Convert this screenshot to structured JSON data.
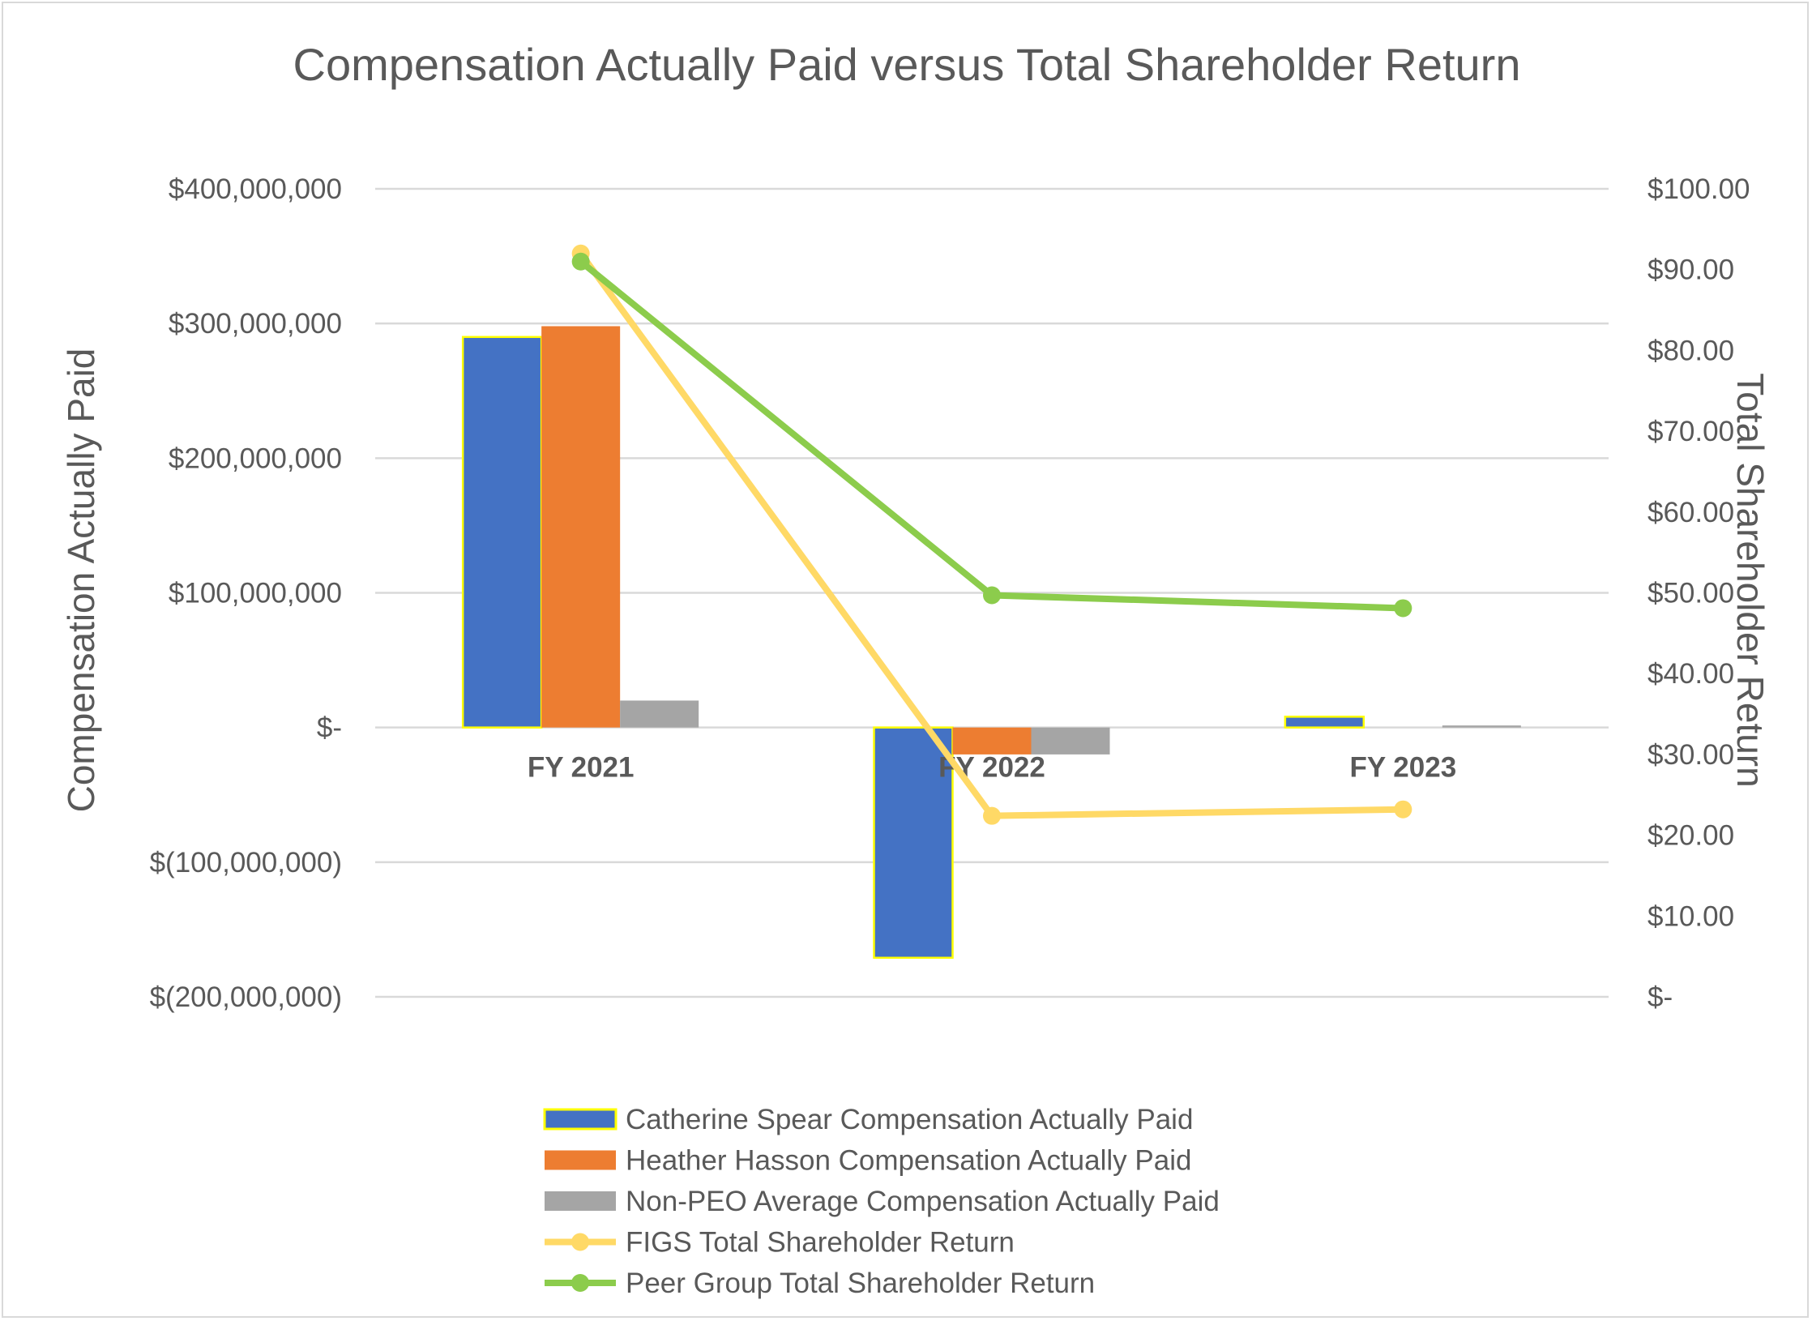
{
  "chart_data": {
    "type": "bar",
    "title": "Compensation Actually Paid versus Total Shareholder Return",
    "categories": [
      "FY 2021",
      "FY 2022",
      "FY 2023"
    ],
    "y_left": {
      "label": "Compensation Actually Paid",
      "lim": [
        -200000000,
        400000000
      ],
      "ticks": [
        400000000,
        300000000,
        200000000,
        100000000,
        0,
        -100000000,
        -200000000
      ],
      "tick_labels": [
        "$400,000,000",
        "$300,000,000",
        "$200,000,000",
        "$100,000,000",
        "$-",
        "$(100,000,000)",
        "$(200,000,000)"
      ]
    },
    "y_right": {
      "label": "Total Shareholder Return",
      "lim": [
        0,
        100
      ],
      "ticks": [
        100,
        90,
        80,
        70,
        60,
        50,
        40,
        30,
        20,
        10,
        0
      ],
      "tick_labels": [
        "$100.00",
        "$90.00",
        "$80.00",
        "$70.00",
        "$60.00",
        "$50.00",
        "$40.00",
        "$30.00",
        "$20.00",
        "$10.00",
        "$-"
      ]
    },
    "bar_series": [
      {
        "name": "Catherine Spear Compensation Actually Paid",
        "color": "#4472c4",
        "outline": "#ffff00",
        "values": [
          290000000,
          -171000000,
          8000000
        ]
      },
      {
        "name": "Heather Hasson Compensation Actually Paid",
        "color": "#ed7d31",
        "values": [
          298000000,
          -20000000,
          0
        ]
      },
      {
        "name": "Non-PEO Average Compensation Actually Paid",
        "color": "#a5a5a5",
        "values": [
          20000000,
          -20000000,
          1500000
        ]
      }
    ],
    "line_series": [
      {
        "name": "FIGS Total Shareholder Return",
        "color": "#ffd966",
        "values": [
          92.0,
          22.4,
          23.2
        ]
      },
      {
        "name": "Peer Group Total Shareholder Return",
        "color": "#8ccc4c",
        "values": [
          91.0,
          49.7,
          48.1
        ]
      }
    ],
    "grid": true,
    "legend_position": "bottom"
  }
}
